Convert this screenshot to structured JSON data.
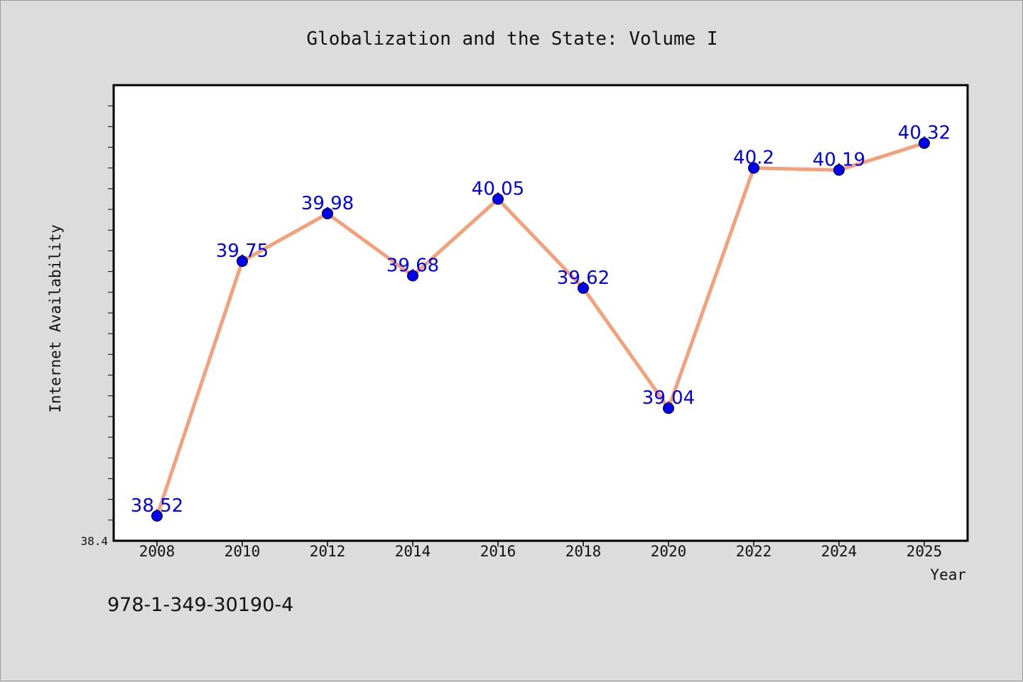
{
  "chart_data": {
    "type": "line",
    "title": "Globalization and the State: Volume I",
    "xlabel": "Year",
    "ylabel": "Internet Availability",
    "x": [
      "2008",
      "2010",
      "2012",
      "2014",
      "2016",
      "2018",
      "2020",
      "2022",
      "2024",
      "2025"
    ],
    "series": [
      {
        "values": [
          38.52,
          39.75,
          39.98,
          39.68,
          40.05,
          39.62,
          39.04,
          40.2,
          40.19,
          40.32
        ]
      }
    ],
    "ylim": [
      38.4,
      40.6
    ],
    "y_tick_labels": [
      "38.4"
    ],
    "grid": false,
    "legend": "none",
    "colors": {
      "line": "#f4a07a",
      "marker": "#0000ee",
      "data_label": "#0000ee",
      "plot_background": "#ffffff",
      "page_background": "#dcdcdc"
    }
  },
  "footer": {
    "isbn": "978-1-349-30190-4"
  }
}
